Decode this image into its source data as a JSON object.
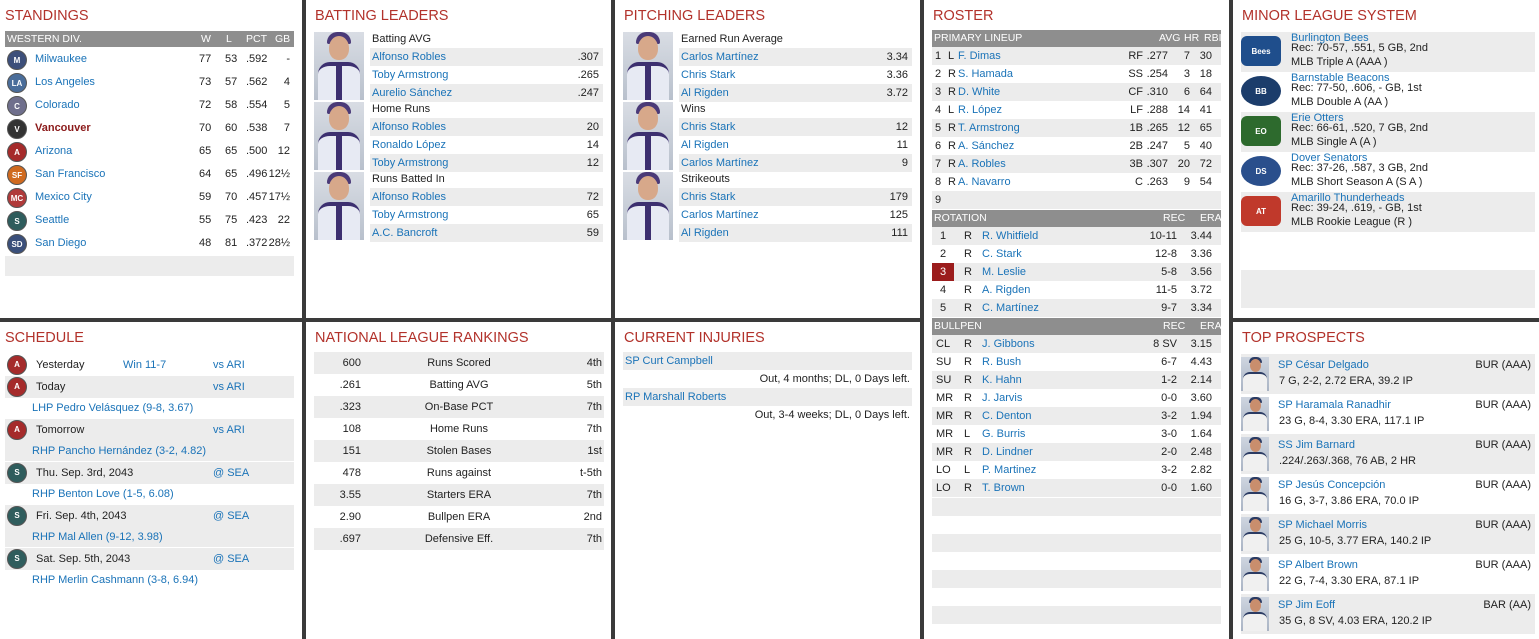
{
  "standings": {
    "title": "STANDINGS",
    "header": {
      "div": "WESTERN DIV.",
      "w": "W",
      "l": "L",
      "pct": "PCT",
      "gb": "GB"
    },
    "teams": [
      {
        "name": "Milwaukee",
        "w": "77",
        "l": "53",
        "pct": ".592",
        "gb": "-",
        "color": "#3d4f7a",
        "abbr": "M"
      },
      {
        "name": "Los Angeles",
        "w": "73",
        "l": "57",
        "pct": ".562",
        "gb": "4",
        "color": "#4a6d9a",
        "abbr": "LA"
      },
      {
        "name": "Colorado",
        "w": "72",
        "l": "58",
        "pct": ".554",
        "gb": "5",
        "color": "#6f6f8c",
        "abbr": "C"
      },
      {
        "name": "Vancouver",
        "w": "70",
        "l": "60",
        "pct": ".538",
        "gb": "7",
        "color": "#333333",
        "abbr": "V",
        "highlight": true
      },
      {
        "name": "Arizona",
        "w": "65",
        "l": "65",
        "pct": ".500",
        "gb": "12",
        "color": "#a52b2b",
        "abbr": "A"
      },
      {
        "name": "San Francisco",
        "w": "64",
        "l": "65",
        "pct": ".496",
        "gb": "12½",
        "color": "#d06a1f",
        "abbr": "SF"
      },
      {
        "name": "Mexico City",
        "w": "59",
        "l": "70",
        "pct": ".457",
        "gb": "17½",
        "color": "#b03a3a",
        "abbr": "MC"
      },
      {
        "name": "Seattle",
        "w": "55",
        "l": "75",
        "pct": ".423",
        "gb": "22",
        "color": "#2f5d5d",
        "abbr": "S"
      },
      {
        "name": "San Diego",
        "w": "48",
        "l": "81",
        "pct": ".372",
        "gb": "28½",
        "color": "#3a4f7a",
        "abbr": "SD"
      }
    ]
  },
  "batting": {
    "title": "BATTING LEADERS",
    "groups": [
      {
        "cat": "Batting AVG",
        "rows": [
          {
            "name": "Alfonso Robles",
            "val": ".307"
          },
          {
            "name": "Toby Armstrong",
            "val": ".265"
          },
          {
            "name": "Aurelio Sánchez",
            "val": ".247"
          }
        ]
      },
      {
        "cat": "Home Runs",
        "rows": [
          {
            "name": "Alfonso Robles",
            "val": "20"
          },
          {
            "name": "Ronaldo López",
            "val": "14"
          },
          {
            "name": "Toby Armstrong",
            "val": "12"
          }
        ]
      },
      {
        "cat": "Runs Batted In",
        "rows": [
          {
            "name": "Alfonso Robles",
            "val": "72"
          },
          {
            "name": "Toby Armstrong",
            "val": "65"
          },
          {
            "name": "A.C. Bancroft",
            "val": "59"
          }
        ]
      }
    ]
  },
  "pitching": {
    "title": "PITCHING LEADERS",
    "groups": [
      {
        "cat": "Earned Run Average",
        "rows": [
          {
            "name": "Carlos Martínez",
            "val": "3.34"
          },
          {
            "name": "Chris Stark",
            "val": "3.36"
          },
          {
            "name": "Al Rigden",
            "val": "3.72"
          }
        ]
      },
      {
        "cat": "Wins",
        "rows": [
          {
            "name": "Chris Stark",
            "val": "12"
          },
          {
            "name": "Al Rigden",
            "val": "11"
          },
          {
            "name": "Carlos Martínez",
            "val": "9"
          }
        ]
      },
      {
        "cat": "Strikeouts",
        "rows": [
          {
            "name": "Chris Stark",
            "val": "179"
          },
          {
            "name": "Carlos Martínez",
            "val": "125"
          },
          {
            "name": "Al Rigden",
            "val": "111"
          }
        ]
      }
    ]
  },
  "roster": {
    "title": "ROSTER",
    "lineup_header": {
      "label": "PRIMARY LINEUP",
      "avg": "AVG",
      "hr": "HR",
      "rbi": "RBI"
    },
    "lineup": [
      {
        "n": "1",
        "h": "L",
        "name": "F. Dimas",
        "pos": "RF",
        "avg": ".277",
        "hr": "7",
        "rbi": "30"
      },
      {
        "n": "2",
        "h": "R",
        "name": "S. Hamada",
        "pos": "SS",
        "avg": ".254",
        "hr": "3",
        "rbi": "18"
      },
      {
        "n": "3",
        "h": "R",
        "name": "D. White",
        "pos": "CF",
        "avg": ".310",
        "hr": "6",
        "rbi": "64"
      },
      {
        "n": "4",
        "h": "L",
        "name": "R. López",
        "pos": "LF",
        "avg": ".288",
        "hr": "14",
        "rbi": "41"
      },
      {
        "n": "5",
        "h": "R",
        "name": "T. Armstrong",
        "pos": "1B",
        "avg": ".265",
        "hr": "12",
        "rbi": "65"
      },
      {
        "n": "6",
        "h": "R",
        "name": "A. Sánchez",
        "pos": "2B",
        "avg": ".247",
        "hr": "5",
        "rbi": "40"
      },
      {
        "n": "7",
        "h": "R",
        "name": "A. Robles",
        "pos": "3B",
        "avg": ".307",
        "hr": "20",
        "rbi": "72"
      },
      {
        "n": "8",
        "h": "R",
        "name": "A. Navarro",
        "pos": "C",
        "avg": ".263",
        "hr": "9",
        "rbi": "54"
      },
      {
        "n": "9",
        "h": "",
        "name": "",
        "pos": "",
        "avg": "",
        "hr": "",
        "rbi": ""
      }
    ],
    "rotation_header": {
      "label": "ROTATION",
      "rec": "REC",
      "era": "ERA"
    },
    "rotation": [
      {
        "n": "1",
        "h": "R",
        "name": "R. Whitfield",
        "rec": "10-11",
        "era": "3.44"
      },
      {
        "n": "2",
        "h": "R",
        "name": "C. Stark",
        "rec": "12-8",
        "era": "3.36"
      },
      {
        "n": "3",
        "h": "R",
        "name": "M. Leslie",
        "rec": "5-8",
        "era": "3.56",
        "today": true
      },
      {
        "n": "4",
        "h": "R",
        "name": "A. Rigden",
        "rec": "11-5",
        "era": "3.72"
      },
      {
        "n": "5",
        "h": "R",
        "name": "C. Martínez",
        "rec": "9-7",
        "era": "3.34"
      }
    ],
    "bullpen_header": {
      "label": "BULLPEN",
      "rec": "REC",
      "era": "ERA"
    },
    "bullpen": [
      {
        "role": "CL",
        "h": "R",
        "name": "J. Gibbons",
        "rec": "8 SV",
        "era": "3.15"
      },
      {
        "role": "SU",
        "h": "R",
        "name": "R. Bush",
        "rec": "6-7",
        "era": "4.43"
      },
      {
        "role": "SU",
        "h": "R",
        "name": "K. Hahn",
        "rec": "1-2",
        "era": "2.14"
      },
      {
        "role": "MR",
        "h": "R",
        "name": "J. Jarvis",
        "rec": "0-0",
        "era": "3.60"
      },
      {
        "role": "MR",
        "h": "R",
        "name": "C. Denton",
        "rec": "3-2",
        "era": "1.94"
      },
      {
        "role": "MR",
        "h": "L",
        "name": "G. Burris",
        "rec": "3-0",
        "era": "1.64"
      },
      {
        "role": "MR",
        "h": "R",
        "name": "D. Lindner",
        "rec": "2-0",
        "era": "2.48"
      },
      {
        "role": "LO",
        "h": "L",
        "name": "P. Martinez",
        "rec": "3-2",
        "era": "2.82"
      },
      {
        "role": "LO",
        "h": "R",
        "name": "T. Brown",
        "rec": "0-0",
        "era": "1.60"
      }
    ]
  },
  "minors": {
    "title": "MINOR LEAGUE SYSTEM",
    "teams": [
      {
        "name": "Burlington Bees",
        "rec": "Rec: 70-57, .551, 5 GB, 2nd",
        "level": "MLB Triple A (AAA )",
        "color": "#1f4e8c",
        "abbr": "Bees"
      },
      {
        "name": "Barnstable Beacons",
        "rec": "Rec: 77-50, .606, - GB, 1st",
        "level": "MLB Double A (AA )",
        "color": "#1c3d6b",
        "abbr": "BB"
      },
      {
        "name": "Erie Otters",
        "rec": "Rec: 66-61, .520, 7 GB, 2nd",
        "level": "MLB Single A (A )",
        "color": "#2d6a2d",
        "abbr": "EO"
      },
      {
        "name": "Dover Senators",
        "rec": "Rec: 37-26, .587, 3 GB, 2nd",
        "level": "MLB Short Season A (S A )",
        "color": "#2a4f8c",
        "abbr": "DS"
      },
      {
        "name": "Amarillo Thunderheads",
        "rec": "Rec: 39-24, .619, - GB, 1st",
        "level": "MLB Rookie League (R )",
        "color": "#c0392b",
        "abbr": "AT"
      }
    ]
  },
  "schedule": {
    "title": "SCHEDULE",
    "games": [
      {
        "day": "Yesterday",
        "result": "Win 11-7",
        "opp": "vs ARI",
        "color": "#a52b2b",
        "abbr": "A",
        "pitcher": ""
      },
      {
        "day": "Today",
        "result": "",
        "opp": "vs ARI",
        "color": "#a52b2b",
        "abbr": "A",
        "pitcher": "LHP Pedro Velásquez (9-8, 3.67)"
      },
      {
        "day": "Tomorrow",
        "result": "",
        "opp": "vs ARI",
        "color": "#a52b2b",
        "abbr": "A",
        "pitcher": "RHP Pancho Hernández (3-2, 4.82)"
      },
      {
        "day": "Thu. Sep. 3rd, 2043",
        "result": "",
        "opp": "@ SEA",
        "color": "#2f5d5d",
        "abbr": "S",
        "pitcher": "RHP Benton Love (1-5, 6.08)"
      },
      {
        "day": "Fri. Sep. 4th, 2043",
        "result": "",
        "opp": "@ SEA",
        "color": "#2f5d5d",
        "abbr": "S",
        "pitcher": "RHP Mal Allen (9-12, 3.98)"
      },
      {
        "day": "Sat. Sep. 5th, 2043",
        "result": "",
        "opp": "@ SEA",
        "color": "#2f5d5d",
        "abbr": "S",
        "pitcher": "RHP Merlin Cashmann (3-8, 6.94)"
      }
    ]
  },
  "rankings": {
    "title": "NATIONAL LEAGUE RANKINGS",
    "rows": [
      {
        "val": "600",
        "stat": "Runs Scored",
        "rank": "4th"
      },
      {
        "val": ".261",
        "stat": "Batting AVG",
        "rank": "5th"
      },
      {
        "val": ".323",
        "stat": "On-Base PCT",
        "rank": "7th"
      },
      {
        "val": "108",
        "stat": "Home Runs",
        "rank": "7th"
      },
      {
        "val": "151",
        "stat": "Stolen Bases",
        "rank": "1st"
      },
      {
        "val": "478",
        "stat": "Runs against",
        "rank": "t-5th"
      },
      {
        "val": "3.55",
        "stat": "Starters ERA",
        "rank": "7th"
      },
      {
        "val": "2.90",
        "stat": "Bullpen ERA",
        "rank": "2nd"
      },
      {
        "val": ".697",
        "stat": "Defensive Eff.",
        "rank": "7th"
      }
    ]
  },
  "injuries": {
    "title": "CURRENT INJURIES",
    "rows": [
      {
        "player": "SP Curt Campbell",
        "status": "Out, 4 months; DL, 0 Days left."
      },
      {
        "player": "RP Marshall Roberts",
        "status": "Out, 3-4 weeks; DL, 0 Days left."
      }
    ]
  },
  "prospects": {
    "title": "TOP PROSPECTS",
    "rows": [
      {
        "name": "SP César Delgado",
        "team": "BUR (AAA)",
        "line": "7 G, 2-2, 2.72 ERA, 39.2 IP"
      },
      {
        "name": "SP Haramala Ranadhir",
        "team": "BUR (AAA)",
        "line": "23 G, 8-4, 3.30 ERA, 117.1 IP"
      },
      {
        "name": "SS Jim Barnard",
        "team": "BUR (AAA)",
        "line": ".224/.263/.368, 76 AB, 2 HR"
      },
      {
        "name": "SP Jesús Concepción",
        "team": "BUR (AAA)",
        "line": "16 G, 3-7, 3.86 ERA, 70.0 IP"
      },
      {
        "name": "SP Michael Morris",
        "team": "BUR (AAA)",
        "line": "25 G, 10-5, 3.77 ERA, 140.2 IP"
      },
      {
        "name": "SP Albert Brown",
        "team": "BUR (AAA)",
        "line": "22 G, 7-4, 3.30 ERA, 87.1 IP"
      },
      {
        "name": "SP Jim Eoff",
        "team": "BAR (AA)",
        "line": "35 G, 8 SV, 4.03 ERA, 120.2 IP"
      }
    ]
  }
}
